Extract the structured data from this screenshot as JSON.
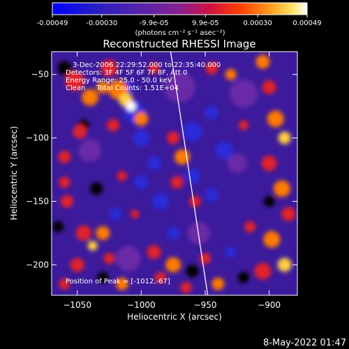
{
  "colorbar": {
    "tick_labels": [
      "-0.00049",
      "-0.00030",
      "-9.9e-05",
      "9.9e-05",
      "0.00030",
      "0.00049"
    ],
    "tick_values": [
      -0.00049,
      -0.0003,
      -9.9e-05,
      9.9e-05,
      0.0003,
      0.00049
    ],
    "range": [
      -0.00049,
      0.00049
    ],
    "unit_label": "(photons cm⁻² s⁻¹ asec⁻²)",
    "gradient_colors": [
      "#0000ff",
      "#3a1cb0",
      "#6a2d9a",
      "#b0206a",
      "#ff0000",
      "#ff8a00",
      "#ffd24a",
      "#ffffff"
    ]
  },
  "chart_data": {
    "type": "heatmap",
    "title": "Reconstructed RHESSI Image",
    "xlabel": "Heliocentric X (arcsec)",
    "ylabel": "Heliocentric Y (arcsec)",
    "xlim": [
      -1070,
      -878
    ],
    "ylim": [
      -224,
      -32
    ],
    "x_ticks": [
      -1050,
      -1000,
      -950,
      -900
    ],
    "y_ticks": [
      -200,
      -150,
      -100,
      -50
    ],
    "x_tick_labels": [
      "−1050",
      "−1000",
      "−950",
      "−900"
    ],
    "y_tick_labels": [
      "−200",
      "−150",
      "−100",
      "−50"
    ],
    "annotations": [
      "3-Dec-2006 22:29:52.000 to 22:35:40.000",
      "Detectors: 3F 4F 5F 6F 7F 8F, Att 0",
      "Energy Range: 25.0 - 50.0 keV",
      "Clean     Total Counts: 1.51E+04"
    ],
    "peak_label": "Position of Peak = [-1012,-67]",
    "peak_position": [
      -1012,
      -67
    ],
    "limb_line": [
      [
        -977,
        -32
      ],
      [
        -948,
        -224
      ]
    ],
    "colors": {
      "blue": "#2a2ad8",
      "deep_purple": "#3c1a9c",
      "purple": "#6a2aa8",
      "black": "#000000",
      "red": "#e2202a",
      "orange": "#ff7a00",
      "yellow": "#ffd040",
      "white": "#ffffff"
    }
  },
  "timestamp": "8-May-2022 01:47"
}
